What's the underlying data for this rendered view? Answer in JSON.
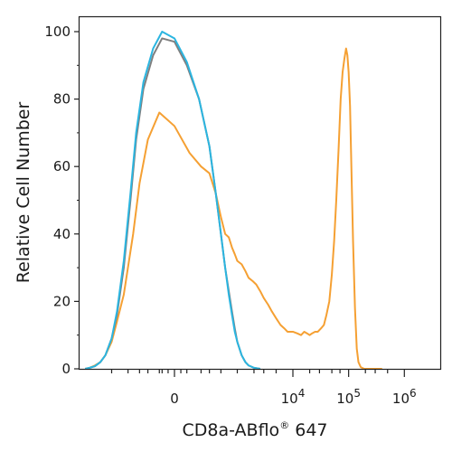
{
  "chart_data": {
    "type": "line",
    "title": "",
    "xlabel": "CD8a-ABflo",
    "xlabel_superscript": "®",
    "xlabel_suffix": " 647",
    "ylabel": "Relative Cell Number",
    "x_scale": "biexponential",
    "x_tick_labels": [
      {
        "base": "0",
        "exp": "",
        "x": 0
      },
      {
        "base": "10",
        "exp": "4",
        "x": 10000
      },
      {
        "base": "10",
        "exp": "5",
        "x": 100000
      },
      {
        "base": "10",
        "exp": "6",
        "x": 1000000
      }
    ],
    "y_tick_labels": [
      "0",
      "20",
      "40",
      "60",
      "80",
      "100"
    ],
    "ylim": [
      0,
      100
    ],
    "grid": false,
    "legend": "none",
    "series": [
      {
        "color": "#f5a033",
        "points": [
          [
            -3000,
            0
          ],
          [
            -2500,
            0.3
          ],
          [
            -2000,
            1
          ],
          [
            -1600,
            2
          ],
          [
            -1300,
            4
          ],
          [
            -1000,
            8
          ],
          [
            -800,
            14
          ],
          [
            -600,
            22
          ],
          [
            -400,
            40
          ],
          [
            -300,
            55
          ],
          [
            -200,
            68
          ],
          [
            -100,
            76
          ],
          [
            0,
            72
          ],
          [
            100,
            64
          ],
          [
            200,
            60
          ],
          [
            300,
            58
          ],
          [
            400,
            52
          ],
          [
            500,
            45
          ],
          [
            600,
            40
          ],
          [
            700,
            39
          ],
          [
            800,
            36
          ],
          [
            900,
            34
          ],
          [
            1000,
            32
          ],
          [
            1200,
            31
          ],
          [
            1400,
            29
          ],
          [
            1600,
            27
          ],
          [
            1900,
            26
          ],
          [
            2200,
            25
          ],
          [
            2600,
            23
          ],
          [
            3000,
            21
          ],
          [
            3600,
            19
          ],
          [
            4200,
            17
          ],
          [
            5000,
            15
          ],
          [
            6000,
            13
          ],
          [
            7000,
            12
          ],
          [
            8000,
            11
          ],
          [
            9000,
            11
          ],
          [
            10000,
            11
          ],
          [
            12000,
            10.5
          ],
          [
            14000,
            10
          ],
          [
            16000,
            11
          ],
          [
            18000,
            10.5
          ],
          [
            20000,
            10
          ],
          [
            22000,
            10.5
          ],
          [
            25000,
            11
          ],
          [
            28000,
            11
          ],
          [
            32000,
            12
          ],
          [
            36000,
            13
          ],
          [
            40000,
            16
          ],
          [
            45000,
            20
          ],
          [
            50000,
            28
          ],
          [
            55000,
            38
          ],
          [
            60000,
            50
          ],
          [
            66000,
            65
          ],
          [
            72000,
            80
          ],
          [
            78000,
            88
          ],
          [
            84000,
            92
          ],
          [
            90000,
            95
          ],
          [
            95000,
            93
          ],
          [
            100000,
            88
          ],
          [
            106000,
            78
          ],
          [
            112000,
            60
          ],
          [
            120000,
            38
          ],
          [
            130000,
            18
          ],
          [
            140000,
            6
          ],
          [
            150000,
            2
          ],
          [
            165000,
            0.5
          ],
          [
            190000,
            0
          ],
          [
            260000,
            0
          ],
          [
            400000,
            0
          ]
        ]
      },
      {
        "color": "#7f7f7f",
        "points": [
          [
            -3000,
            0
          ],
          [
            -2500,
            0.3
          ],
          [
            -2000,
            0.8
          ],
          [
            -1600,
            2
          ],
          [
            -1300,
            4
          ],
          [
            -1000,
            9
          ],
          [
            -800,
            16
          ],
          [
            -600,
            30
          ],
          [
            -450,
            50
          ],
          [
            -350,
            68
          ],
          [
            -250,
            83
          ],
          [
            -150,
            93
          ],
          [
            -80,
            98
          ],
          [
            0,
            97
          ],
          [
            80,
            90
          ],
          [
            180,
            80
          ],
          [
            300,
            66
          ],
          [
            400,
            52
          ],
          [
            500,
            40
          ],
          [
            600,
            30
          ],
          [
            700,
            23
          ],
          [
            800,
            17
          ],
          [
            900,
            12
          ],
          [
            1000,
            8
          ],
          [
            1200,
            4
          ],
          [
            1400,
            2
          ],
          [
            1600,
            1
          ],
          [
            2000,
            0.3
          ],
          [
            2600,
            0
          ]
        ]
      },
      {
        "color": "#2bb5e0",
        "points": [
          [
            -3000,
            0
          ],
          [
            -2500,
            0.3
          ],
          [
            -2000,
            0.8
          ],
          [
            -1600,
            2
          ],
          [
            -1300,
            4
          ],
          [
            -1000,
            9
          ],
          [
            -800,
            17
          ],
          [
            -600,
            32
          ],
          [
            -450,
            52
          ],
          [
            -350,
            70
          ],
          [
            -250,
            85
          ],
          [
            -150,
            95
          ],
          [
            -80,
            100
          ],
          [
            0,
            98
          ],
          [
            80,
            91
          ],
          [
            180,
            80
          ],
          [
            300,
            66
          ],
          [
            400,
            52
          ],
          [
            500,
            40
          ],
          [
            600,
            30
          ],
          [
            700,
            22
          ],
          [
            800,
            16
          ],
          [
            900,
            11
          ],
          [
            1000,
            8
          ],
          [
            1200,
            4
          ],
          [
            1400,
            2
          ],
          [
            1600,
            1
          ],
          [
            2000,
            0.3
          ],
          [
            2600,
            0
          ]
        ]
      }
    ]
  }
}
